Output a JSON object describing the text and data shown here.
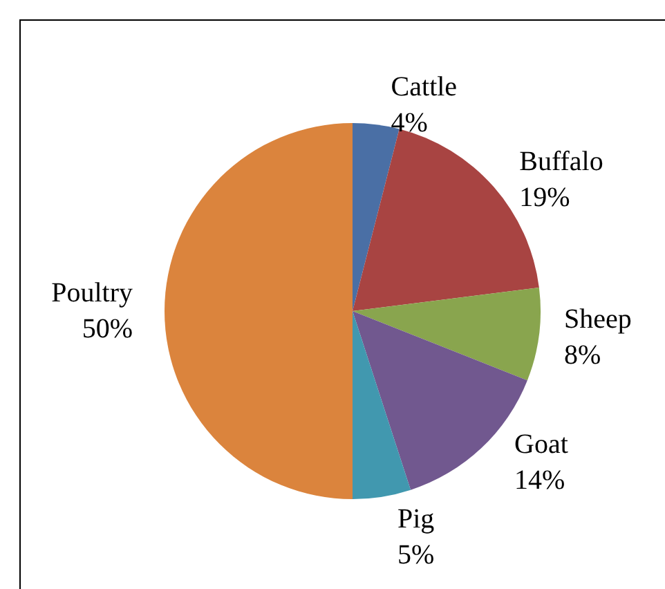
{
  "chart_data": {
    "type": "pie",
    "categories": [
      "Cattle",
      "Buffalo",
      "Sheep",
      "Goat",
      "Pig",
      "Poultry"
    ],
    "values": [
      4,
      19,
      8,
      14,
      5,
      50
    ],
    "value_labels": [
      "4%",
      "19%",
      "8%",
      "14%",
      "5%",
      "50%"
    ],
    "colors": [
      "#4a6fa5",
      "#a84442",
      "#89a54e",
      "#71588f",
      "#4198af",
      "#db843d"
    ],
    "legend": false
  }
}
